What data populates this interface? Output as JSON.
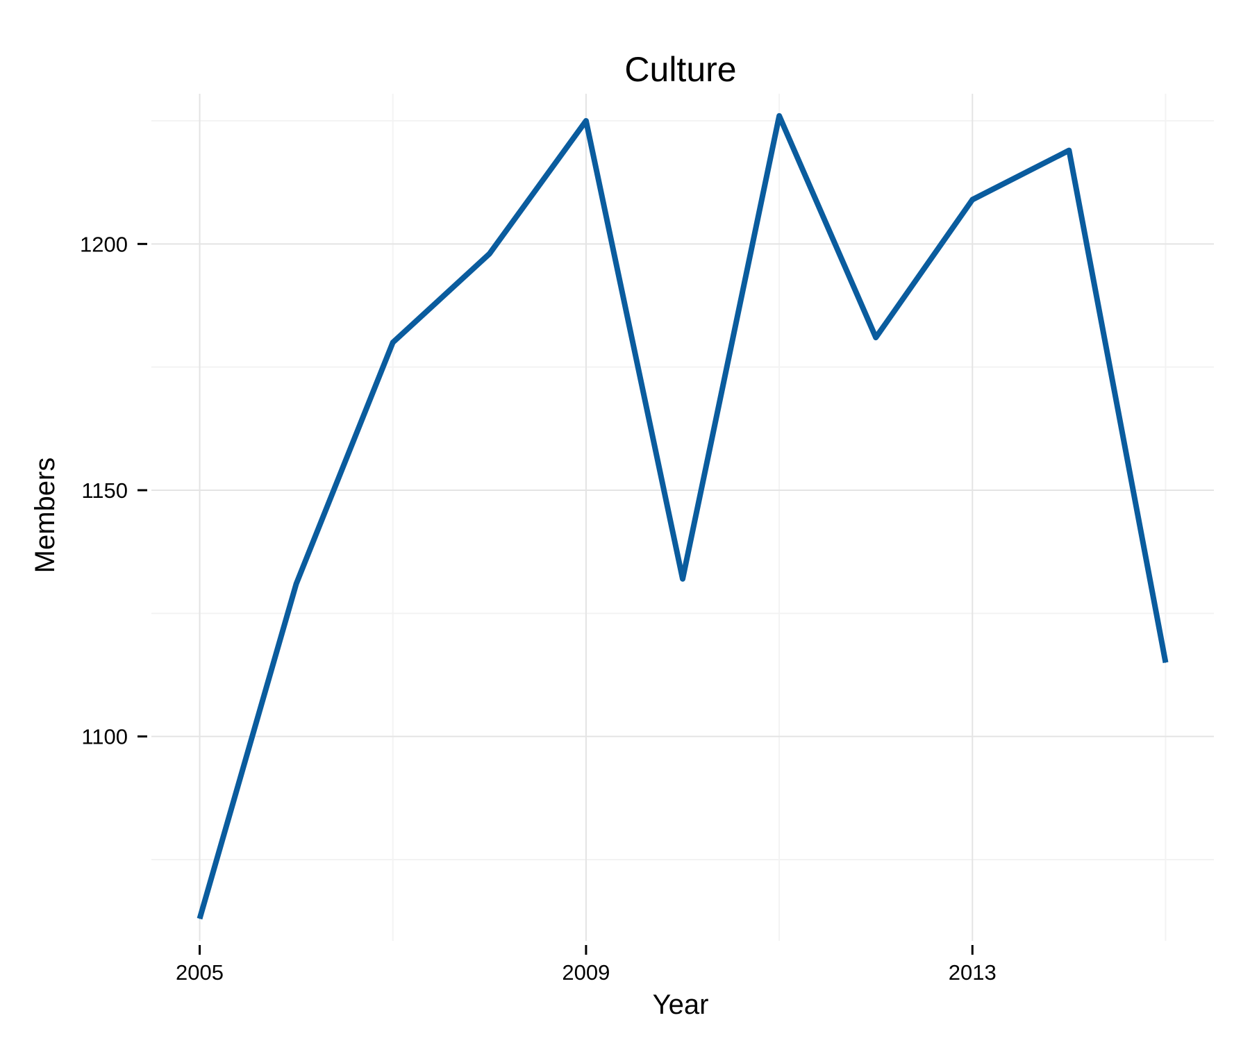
{
  "chart_data": {
    "type": "line",
    "title": "Culture",
    "xlabel": "Year",
    "ylabel": "Members",
    "x": [
      2005,
      2006,
      2007,
      2008,
      2009,
      2010,
      2011,
      2012,
      2013,
      2014,
      2015
    ],
    "series": [
      {
        "values": [
          1063,
          1131,
          1180,
          1198,
          1225,
          1132,
          1226,
          1181,
          1209,
          1219,
          1115
        ],
        "color": "#0a5c9e"
      }
    ],
    "x_ticks": [
      2005,
      2009,
      2013
    ],
    "x_tick_labels": [
      "2005",
      "2009",
      "2013"
    ],
    "x_minor_gridlines": [
      2007,
      2011,
      2015
    ],
    "y_ticks": [
      1100,
      1150,
      1200
    ],
    "y_tick_labels": [
      "1100",
      "1150",
      "1200"
    ],
    "y_minor_gridlines": [
      1075,
      1125,
      1175,
      1225
    ],
    "xlim": [
      2004.5,
      2015.5
    ],
    "ylim": [
      1058.5,
      1230.5
    ],
    "grid": true,
    "legend": "none",
    "colors": {
      "line": "#0a5c9e",
      "major_grid": "#e4e4e4",
      "minor_grid": "#f3f3f3",
      "text": "#000000"
    }
  }
}
